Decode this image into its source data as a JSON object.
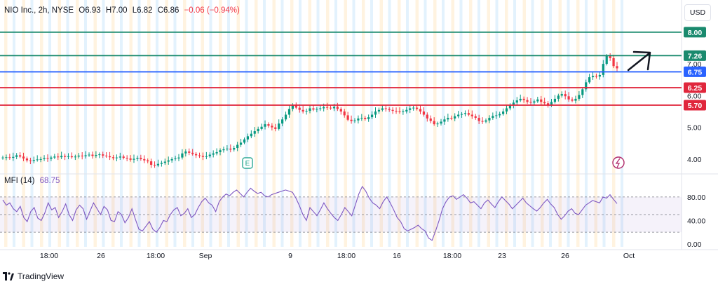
{
  "legend": {
    "symbol": "NIO Inc., 2h, NYSE",
    "open": "O6.93",
    "high": "H7.00",
    "low": "L6.82",
    "close": "C6.86",
    "change": "−0.06 (−0.94%)"
  },
  "currency_button": "USD",
  "indicator": {
    "name": "MFI (14)",
    "value": "68.75"
  },
  "brand": {
    "name": "TradingView",
    "logo_icon": "tradingview-logo-icon"
  },
  "colors": {
    "up": "#089981",
    "down": "#f23645",
    "resistance_green": "#1a8a6e",
    "pivot_blue": "#2962ff",
    "support_red": "#e0263c",
    "mfi_line": "#7e57c2",
    "session_band_orange": "#fff3e0",
    "session_band_blue": "#e3f2fd"
  },
  "chart_data": {
    "type": "candlestick",
    "symbol": "NIO Inc.",
    "interval": "2h",
    "exchange": "NYSE",
    "currency": "USD",
    "y_ticks": [
      "4.00",
      "5.00",
      "6.00",
      "7.00"
    ],
    "ylim": [
      3.6,
      8.35
    ],
    "x_ticks": [
      "18:00",
      "26",
      "18:00",
      "Sep",
      "9",
      "18:00",
      "16",
      "18:00",
      "23",
      "26",
      "Oct"
    ],
    "levels": [
      {
        "label": "8.00",
        "value": 8.0,
        "color": "resistance_green"
      },
      {
        "label": "7.26",
        "value": 7.26,
        "color": "resistance_green"
      },
      {
        "label": "6.75",
        "value": 6.75,
        "color": "pivot_blue"
      },
      {
        "label": "6.25",
        "value": 6.25,
        "color": "support_red"
      },
      {
        "label": "5.70",
        "value": 5.7,
        "color": "support_red"
      }
    ],
    "close_path": [
      4.05,
      4.06,
      4.04,
      4.07,
      4.12,
      4.08,
      4.02,
      3.96,
      3.94,
      3.97,
      3.99,
      4.0,
      4.03,
      4.01,
      4.05,
      4.08,
      4.06,
      4.1,
      4.07,
      4.09,
      4.06,
      4.08,
      4.11,
      4.09,
      4.12,
      4.14,
      4.1,
      4.13,
      4.15,
      4.11,
      4.09,
      4.06,
      4.03,
      4.05,
      4.08,
      4.04,
      4.02,
      3.98,
      4.01,
      4.04,
      4.0,
      3.96,
      3.93,
      3.82,
      3.8,
      3.85,
      3.88,
      3.92,
      3.96,
      4.0,
      4.02,
      4.05,
      4.18,
      4.24,
      4.2,
      4.16,
      4.12,
      4.1,
      4.07,
      4.09,
      4.14,
      4.18,
      4.22,
      4.28,
      4.31,
      4.33,
      4.3,
      4.35,
      4.45,
      4.52,
      4.62,
      4.72,
      4.8,
      4.88,
      4.95,
      5.02,
      5.1,
      5.05,
      5.0,
      4.95,
      5.12,
      5.25,
      5.4,
      5.58,
      5.7,
      5.62,
      5.55,
      5.5,
      5.52,
      5.6,
      5.56,
      5.58,
      5.6,
      5.64,
      5.62,
      5.6,
      5.65,
      5.58,
      5.5,
      5.38,
      5.24,
      5.2,
      5.22,
      5.28,
      5.3,
      5.26,
      5.32,
      5.4,
      5.5,
      5.55,
      5.6,
      5.58,
      5.55,
      5.52,
      5.5,
      5.48,
      5.5,
      5.55,
      5.6,
      5.62,
      5.58,
      5.5,
      5.4,
      5.28,
      5.2,
      5.1,
      5.12,
      5.18,
      5.25,
      5.3,
      5.28,
      5.35,
      5.4,
      5.42,
      5.45,
      5.4,
      5.35,
      5.3,
      5.2,
      5.18,
      5.22,
      5.3,
      5.36,
      5.38,
      5.42,
      5.5,
      5.6,
      5.7,
      5.78,
      5.85,
      5.9,
      5.86,
      5.8,
      5.78,
      5.82,
      5.88,
      5.8,
      5.76,
      5.72,
      5.8,
      5.9,
      6.0,
      6.05,
      5.98,
      5.88,
      5.84,
      5.9,
      6.02,
      6.2,
      6.42,
      6.58,
      6.62,
      6.6,
      6.65,
      7.0,
      7.25,
      7.18,
      6.93,
      6.86
    ],
    "mfi": {
      "name": "MFI (14)",
      "last": 68.75,
      "ylim": [
        -5,
        105
      ],
      "y_ticks": [
        "0.00",
        "40.00",
        "80.00"
      ],
      "bands": [
        20,
        50,
        80
      ],
      "values": [
        75,
        66,
        70,
        60,
        55,
        64,
        45,
        38,
        55,
        62,
        44,
        40,
        52,
        70,
        58,
        62,
        45,
        55,
        68,
        50,
        40,
        58,
        66,
        60,
        42,
        56,
        70,
        60,
        50,
        64,
        58,
        40,
        38,
        55,
        50,
        36,
        45,
        60,
        42,
        25,
        22,
        30,
        38,
        25,
        20,
        28,
        40,
        38,
        50,
        58,
        62,
        48,
        52,
        60,
        45,
        50,
        62,
        72,
        78,
        70,
        66,
        55,
        72,
        80,
        85,
        82,
        88,
        92,
        86,
        80,
        88,
        95,
        90,
        86,
        88,
        82,
        80,
        84,
        86,
        88,
        90,
        92,
        90,
        88,
        78,
        65,
        50,
        40,
        62,
        55,
        48,
        58,
        70,
        60,
        52,
        45,
        40,
        50,
        62,
        55,
        48,
        66,
        85,
        98,
        90,
        78,
        70,
        66,
        60,
        72,
        80,
        70,
        58,
        45,
        38,
        26,
        22,
        25,
        28,
        32,
        26,
        22,
        10,
        6,
        22,
        40,
        60,
        72,
        80,
        82,
        76,
        80,
        84,
        78,
        70,
        72,
        66,
        60,
        70,
        75,
        68,
        62,
        72,
        80,
        74,
        68,
        60,
        66,
        72,
        78,
        70,
        65,
        60,
        56,
        62,
        70,
        76,
        68,
        62,
        50,
        42,
        48,
        56,
        60,
        52,
        50,
        58,
        66,
        70,
        74,
        72,
        70,
        80,
        78,
        84,
        76,
        68.75
      ]
    }
  }
}
